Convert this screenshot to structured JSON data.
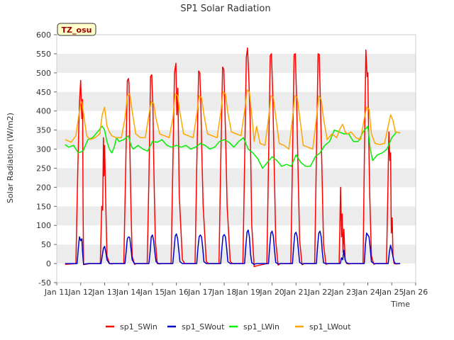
{
  "chart_data": {
    "type": "line",
    "title": "SP1 Solar Radiation",
    "xlabel": "Time",
    "ylabel": "Solar Radiation (W/m2)",
    "ylim": [
      -50,
      600
    ],
    "yticks": [
      -50,
      0,
      50,
      100,
      150,
      200,
      250,
      300,
      350,
      400,
      450,
      500,
      550,
      600
    ],
    "xlim": [
      11,
      26
    ],
    "xticks": [
      {
        "value": 11,
        "label": "Jan 11"
      },
      {
        "value": 12,
        "label": "Jan 12"
      },
      {
        "value": 13,
        "label": "Jan 13"
      },
      {
        "value": 14,
        "label": "Jan 14"
      },
      {
        "value": 15,
        "label": "Jan 15"
      },
      {
        "value": 16,
        "label": "Jan 16"
      },
      {
        "value": 17,
        "label": "Jan 17"
      },
      {
        "value": 18,
        "label": "Jan 18"
      },
      {
        "value": 19,
        "label": "Jan 19"
      },
      {
        "value": 20,
        "label": "Jan 20"
      },
      {
        "value": 21,
        "label": "Jan 21"
      },
      {
        "value": 22,
        "label": "Jan 22"
      },
      {
        "value": 23,
        "label": "Jan 23"
      },
      {
        "value": 24,
        "label": "Jan 24"
      },
      {
        "value": 25,
        "label": "Jan 25"
      },
      {
        "value": 26,
        "label": "Jan 26"
      }
    ],
    "grid": "horizontal bands",
    "legend": "bottom",
    "annotation": "TZ_osu",
    "series": [
      {
        "name": "sp1_SWin",
        "color": "#ff0000",
        "x": [
          11.35,
          11.8,
          11.88,
          11.95,
          12.0,
          12.05,
          12.08,
          12.1,
          12.12,
          12.2,
          12.3,
          12.35,
          12.82,
          12.88,
          12.92,
          12.95,
          12.97,
          13.0,
          13.05,
          13.1,
          13.2,
          13.3,
          13.35,
          13.8,
          13.88,
          13.95,
          14.0,
          14.02,
          14.05,
          14.1,
          14.15,
          14.25,
          14.35,
          14.78,
          14.85,
          14.92,
          14.97,
          15.02,
          15.05,
          15.08,
          15.12,
          15.2,
          15.3,
          15.35,
          15.78,
          15.85,
          15.92,
          15.98,
          16.02,
          16.06,
          16.12,
          16.25,
          16.35,
          16.78,
          16.85,
          16.93,
          16.98,
          17.02,
          17.06,
          17.12,
          17.25,
          17.35,
          17.78,
          17.85,
          17.93,
          17.98,
          18.02,
          18.06,
          18.12,
          18.25,
          18.35,
          18.78,
          18.85,
          18.92,
          18.97,
          19.02,
          19.08,
          19.15,
          19.25,
          19.35,
          19.78,
          19.85,
          19.92,
          19.97,
          20.02,
          20.08,
          20.15,
          20.25,
          20.35,
          20.78,
          20.85,
          20.92,
          20.97,
          21.02,
          21.08,
          21.15,
          21.25,
          21.35,
          21.78,
          21.85,
          21.92,
          21.97,
          22.02,
          22.08,
          22.15,
          22.25,
          22.35,
          22.8,
          22.86,
          22.9,
          22.93,
          22.96,
          23.0,
          23.05,
          23.12,
          23.2,
          23.35,
          23.8,
          23.86,
          23.92,
          23.97,
          24.0,
          24.03,
          24.08,
          24.15,
          24.25,
          24.35,
          24.78,
          24.84,
          24.88,
          24.92,
          24.95,
          24.98,
          25.02,
          25.05,
          25.1,
          25.2,
          25.35
        ],
        "y": [
          -2,
          0,
          250,
          420,
          480,
          380,
          430,
          150,
          -3,
          -2,
          -1,
          0,
          0,
          150,
          140,
          330,
          230,
          310,
          150,
          20,
          0,
          -1,
          0,
          0,
          250,
          480,
          485,
          470,
          320,
          150,
          20,
          -2,
          0,
          0,
          220,
          490,
          495,
          410,
          280,
          180,
          60,
          0,
          -1,
          0,
          0,
          250,
          500,
          525,
          390,
          460,
          180,
          10,
          0,
          0,
          250,
          505,
          500,
          420,
          300,
          150,
          5,
          0,
          0,
          260,
          515,
          510,
          420,
          320,
          150,
          5,
          0,
          0,
          260,
          540,
          565,
          500,
          380,
          100,
          -8,
          -6,
          0,
          260,
          545,
          550,
          460,
          280,
          60,
          -4,
          0,
          0,
          270,
          548,
          550,
          440,
          260,
          60,
          -3,
          0,
          0,
          280,
          550,
          548,
          420,
          250,
          50,
          -2,
          0,
          0,
          200,
          70,
          130,
          30,
          90,
          10,
          0,
          -1,
          0,
          0,
          300,
          560,
          490,
          500,
          360,
          180,
          20,
          -2,
          0,
          0,
          200,
          345,
          270,
          290,
          80,
          120,
          20,
          0,
          -1,
          0
        ]
      },
      {
        "name": "sp1_SWout",
        "color": "#0000cc",
        "x": [
          11.35,
          11.85,
          11.9,
          11.95,
          12.0,
          12.05,
          12.08,
          12.12,
          12.2,
          12.3,
          12.35,
          12.85,
          12.9,
          12.95,
          13.0,
          13.05,
          13.1,
          13.2,
          13.35,
          13.85,
          13.9,
          13.95,
          14.0,
          14.05,
          14.1,
          14.15,
          14.25,
          14.35,
          14.85,
          14.9,
          14.95,
          15.0,
          15.05,
          15.1,
          15.15,
          15.25,
          15.35,
          15.85,
          15.9,
          15.95,
          16.0,
          16.05,
          16.1,
          16.15,
          16.25,
          16.35,
          16.85,
          16.9,
          16.95,
          17.0,
          17.05,
          17.1,
          17.15,
          17.25,
          17.35,
          17.85,
          17.9,
          17.95,
          18.0,
          18.05,
          18.1,
          18.15,
          18.25,
          18.35,
          18.85,
          18.9,
          18.95,
          19.0,
          19.05,
          19.1,
          19.15,
          19.25,
          19.35,
          19.85,
          19.9,
          19.95,
          20.0,
          20.05,
          20.1,
          20.15,
          20.25,
          20.35,
          20.85,
          20.9,
          20.95,
          21.0,
          21.05,
          21.1,
          21.15,
          21.25,
          21.35,
          21.85,
          21.9,
          21.95,
          22.0,
          22.05,
          22.1,
          22.15,
          22.25,
          22.35,
          22.85,
          22.9,
          22.95,
          23.0,
          23.05,
          23.1,
          23.2,
          23.35,
          23.85,
          23.9,
          23.95,
          24.0,
          24.05,
          24.1,
          24.15,
          24.25,
          24.35,
          24.85,
          24.9,
          24.95,
          25.0,
          25.05,
          25.1,
          25.15,
          25.25,
          25.35
        ],
        "y": [
          0,
          0,
          40,
          70,
          60,
          65,
          30,
          -2,
          -1,
          0,
          0,
          0,
          20,
          40,
          45,
          30,
          10,
          0,
          0,
          0,
          30,
          65,
          70,
          68,
          40,
          10,
          0,
          0,
          0,
          30,
          70,
          75,
          60,
          30,
          5,
          0,
          0,
          0,
          35,
          72,
          78,
          65,
          35,
          5,
          0,
          0,
          0,
          40,
          70,
          75,
          70,
          40,
          5,
          0,
          0,
          0,
          40,
          72,
          76,
          70,
          40,
          5,
          0,
          0,
          0,
          45,
          82,
          88,
          70,
          25,
          2,
          -2,
          0,
          0,
          45,
          80,
          85,
          72,
          35,
          3,
          -1,
          0,
          0,
          45,
          78,
          82,
          70,
          35,
          3,
          -1,
          0,
          0,
          45,
          80,
          85,
          70,
          30,
          2,
          0,
          0,
          0,
          15,
          10,
          35,
          10,
          2,
          0,
          0,
          0,
          50,
          80,
          75,
          70,
          40,
          5,
          0,
          0,
          0,
          30,
          48,
          35,
          18,
          5,
          0,
          0,
          0
        ]
      },
      {
        "name": "sp1_LWin",
        "color": "#00ee00",
        "x": [
          11.35,
          11.5,
          11.7,
          11.9,
          12.1,
          12.3,
          12.5,
          12.7,
          12.9,
          13.0,
          13.1,
          13.2,
          13.3,
          13.4,
          13.5,
          13.6,
          13.8,
          14.0,
          14.1,
          14.2,
          14.4,
          14.6,
          14.8,
          15.0,
          15.2,
          15.4,
          15.6,
          15.8,
          16.0,
          16.2,
          16.4,
          16.6,
          16.8,
          17.0,
          17.2,
          17.4,
          17.6,
          17.8,
          18.0,
          18.2,
          18.4,
          18.6,
          18.8,
          19.0,
          19.2,
          19.4,
          19.6,
          19.8,
          20.0,
          20.2,
          20.4,
          20.6,
          20.8,
          21.0,
          21.2,
          21.4,
          21.6,
          21.8,
          22.0,
          22.2,
          22.4,
          22.6,
          22.8,
          23.0,
          23.2,
          23.4,
          23.6,
          23.8,
          24.0,
          24.1,
          24.2,
          24.4,
          24.6,
          24.8,
          25.0,
          25.2,
          25.35
        ],
        "y": [
          312,
          305,
          310,
          290,
          295,
          325,
          330,
          345,
          360,
          350,
          320,
          300,
          290,
          305,
          330,
          320,
          325,
          335,
          310,
          300,
          310,
          300,
          295,
          320,
          318,
          325,
          310,
          305,
          310,
          305,
          310,
          300,
          305,
          315,
          310,
          300,
          305,
          320,
          325,
          318,
          305,
          320,
          330,
          300,
          290,
          275,
          250,
          265,
          280,
          270,
          255,
          260,
          255,
          285,
          265,
          255,
          255,
          280,
          290,
          310,
          320,
          350,
          345,
          340,
          340,
          320,
          320,
          345,
          360,
          300,
          270,
          285,
          290,
          300,
          330,
          345,
          342
        ]
      },
      {
        "name": "sp1_LWout",
        "color": "#ffa500",
        "x": [
          11.35,
          11.6,
          11.8,
          11.9,
          12.0,
          12.05,
          12.15,
          12.25,
          12.4,
          12.6,
          12.8,
          12.9,
          13.0,
          13.1,
          13.2,
          13.3,
          13.5,
          13.7,
          13.85,
          13.95,
          14.05,
          14.15,
          14.3,
          14.5,
          14.7,
          14.85,
          14.95,
          15.05,
          15.15,
          15.3,
          15.5,
          15.7,
          15.85,
          15.95,
          16.05,
          16.15,
          16.3,
          16.5,
          16.7,
          16.85,
          16.95,
          17.05,
          17.15,
          17.3,
          17.5,
          17.7,
          17.85,
          17.95,
          18.05,
          18.15,
          18.3,
          18.5,
          18.7,
          18.85,
          18.95,
          19.05,
          19.15,
          19.25,
          19.35,
          19.5,
          19.7,
          19.85,
          19.95,
          20.05,
          20.15,
          20.3,
          20.5,
          20.7,
          20.85,
          20.95,
          21.05,
          21.15,
          21.3,
          21.5,
          21.7,
          21.85,
          21.95,
          22.05,
          22.15,
          22.3,
          22.5,
          22.7,
          22.85,
          22.95,
          23.05,
          23.15,
          23.3,
          23.5,
          23.7,
          23.85,
          23.95,
          24.05,
          24.15,
          24.3,
          24.5,
          24.7,
          24.85,
          24.95,
          25.05,
          25.15,
          25.35
        ],
        "y": [
          325,
          318,
          335,
          380,
          420,
          425,
          380,
          335,
          325,
          330,
          340,
          390,
          410,
          360,
          345,
          335,
          330,
          330,
          380,
          440,
          445,
          400,
          340,
          330,
          330,
          390,
          425,
          420,
          380,
          340,
          335,
          330,
          380,
          445,
          440,
          395,
          340,
          335,
          330,
          390,
          440,
          435,
          390,
          340,
          335,
          330,
          395,
          450,
          445,
          395,
          345,
          340,
          335,
          400,
          455,
          450,
          390,
          320,
          360,
          315,
          310,
          380,
          440,
          435,
          385,
          315,
          310,
          300,
          380,
          440,
          435,
          385,
          310,
          305,
          300,
          380,
          440,
          430,
          380,
          325,
          340,
          330,
          355,
          365,
          345,
          340,
          345,
          330,
          325,
          380,
          410,
          405,
          340,
          315,
          312,
          315,
          360,
          390,
          375,
          345,
          343
        ]
      }
    ]
  }
}
